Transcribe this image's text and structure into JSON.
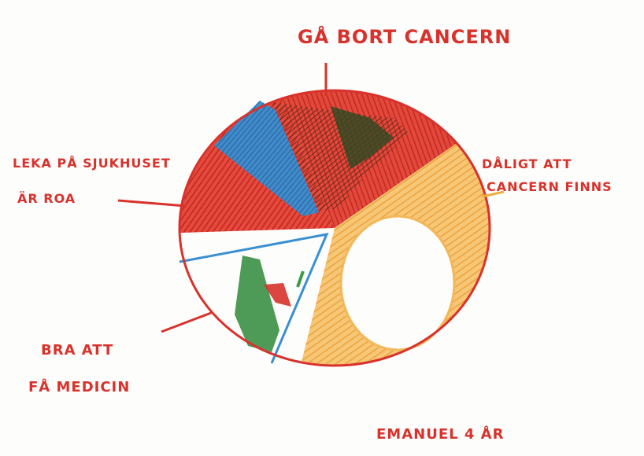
{
  "chart_data": {
    "type": "pie",
    "title": "",
    "categories": [
      "GÅ BORT CANCERN",
      "DÅLIGT ATT CANCERN FINNS",
      "BRA ATT FÅ MEDICIN",
      "LEKA PÅ SJUKHUSET ÄR ROA"
    ],
    "values": [
      20,
      39,
      21,
      20
    ],
    "colors": [
      "#d8322c",
      "#f0ad3c",
      "#ffffff",
      "#d8322c"
    ],
    "stroke_color": "#d8322c",
    "legend": "none"
  },
  "labels": {
    "top": "GÅ BORT CANCERN",
    "right_line1": "DÅLIGT ATT",
    "right_line2": "CANCERN FINNS",
    "left_line1": "LEKA PÅ SJUKHUSET",
    "left_line2": "ÄR ROA",
    "bottom_line1": "BRA ATT",
    "bottom_line2": "FÅ MEDICIN"
  },
  "signature": "EMANUEL 4 ÅR"
}
